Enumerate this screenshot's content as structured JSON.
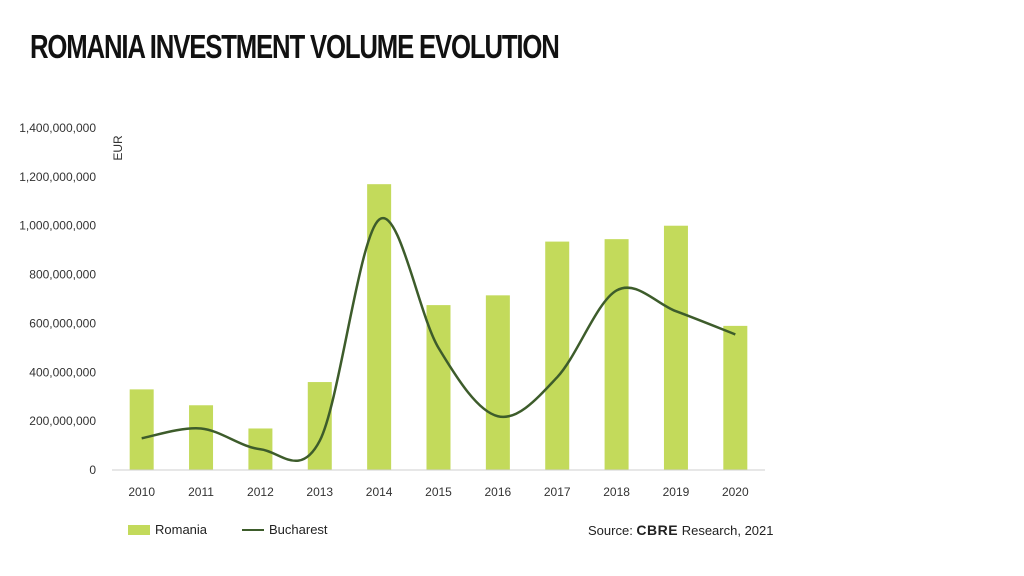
{
  "title": "ROMANIA INVESTMENT VOLUME EVOLUTION",
  "colors": {
    "bar": "#c3da5b",
    "line": "#3d5c2b",
    "axis": "#cfcfcf"
  },
  "source": {
    "prefix": "Source: ",
    "brand": "CBRE",
    "suffix": " Research, 2021"
  },
  "chart_data": {
    "type": "bar",
    "title": "ROMANIA INVESTMENT VOLUME EVOLUTION",
    "ylabel": "EUR",
    "xlabel": "",
    "ylim": [
      0,
      1400000000
    ],
    "y_ticks": [
      0,
      200000000,
      400000000,
      600000000,
      800000000,
      1000000000,
      1200000000,
      1400000000
    ],
    "y_tick_labels": [
      "0",
      "200,000,000",
      "400,000,000",
      "600,000,000",
      "800,000,000",
      "1,000,000,000",
      "1,200,000,000",
      "1,400,000,000"
    ],
    "grid": false,
    "legend_position": "bottom-left",
    "categories": [
      "2010",
      "2011",
      "2012",
      "2013",
      "2014",
      "2015",
      "2016",
      "2017",
      "2018",
      "2019",
      "2020"
    ],
    "series": [
      {
        "name": "Romania",
        "type": "bar",
        "values": [
          330000000,
          265000000,
          170000000,
          360000000,
          1170000000,
          675000000,
          715000000,
          935000000,
          945000000,
          1000000000,
          590000000
        ]
      },
      {
        "name": "Bucharest",
        "type": "line",
        "smooth": true,
        "values": [
          130000000,
          170000000,
          85000000,
          120000000,
          1025000000,
          500000000,
          220000000,
          380000000,
          735000000,
          650000000,
          555000000
        ]
      }
    ]
  }
}
